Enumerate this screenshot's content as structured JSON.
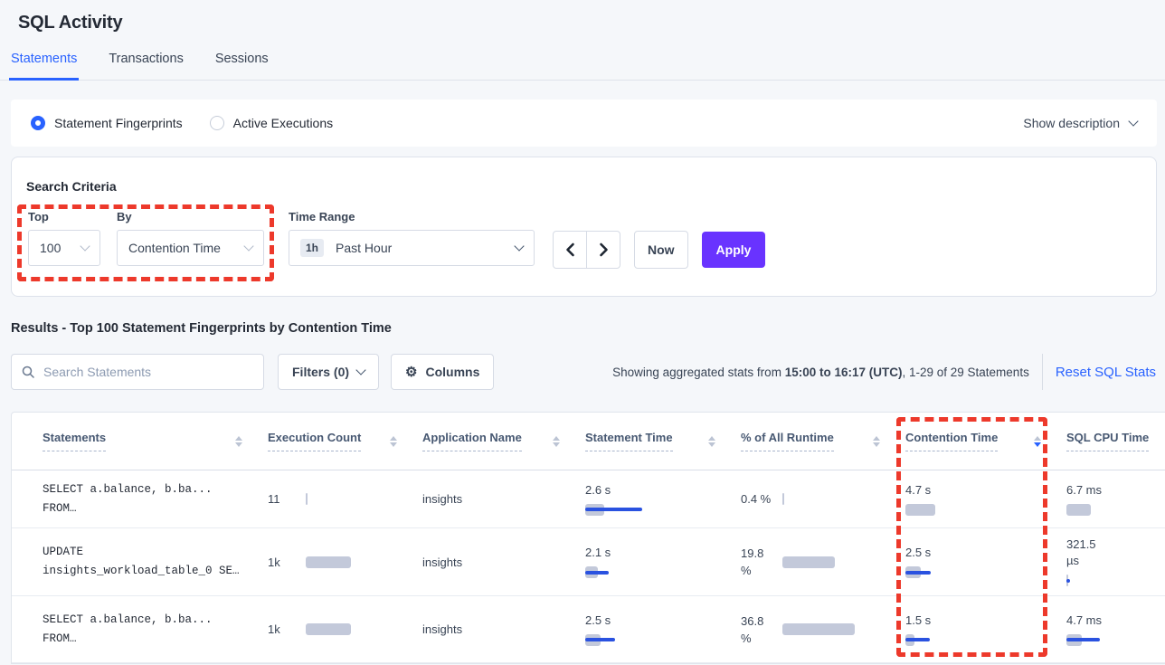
{
  "page": {
    "title": "SQL Activity",
    "background": "#f5f7fa",
    "accent_blue": "#2962ff",
    "accent_purple": "#6933ff",
    "annotation_red": "#ed392b",
    "bar_gray": "#c3c9da",
    "bar_blue": "#2a52e0"
  },
  "tabs": [
    {
      "label": "Statements",
      "active": true
    },
    {
      "label": "Transactions",
      "active": false
    },
    {
      "label": "Sessions",
      "active": false
    }
  ],
  "view_toggle": {
    "options": [
      {
        "label": "Statement Fingerprints",
        "selected": true
      },
      {
        "label": "Active Executions",
        "selected": false
      }
    ],
    "show_description_label": "Show description"
  },
  "search_criteria": {
    "heading": "Search Criteria",
    "top_label": "Top",
    "top_value": "100",
    "by_label": "By",
    "by_value": "Contention Time",
    "time_range_label": "Time Range",
    "time_range_badge": "1h",
    "time_range_value": "Past Hour",
    "now_label": "Now",
    "apply_label": "Apply"
  },
  "results": {
    "heading": "Results - Top 100 Statement Fingerprints by Contention Time",
    "search_placeholder": "Search Statements",
    "filters_label": "Filters (0)",
    "columns_label": "Columns",
    "stats_prefix": "Showing aggregated stats from ",
    "stats_range": "15:00 to 16:17 (UTC)",
    "stats_suffix": ", 1-29 of 29 Statements",
    "reset_label": "Reset SQL Stats"
  },
  "table": {
    "headers": [
      {
        "label": "Statements",
        "sort": "none"
      },
      {
        "label": "Execution Count",
        "sort": "none"
      },
      {
        "label": "Application Name",
        "sort": "none"
      },
      {
        "label": "Statement Time",
        "sort": "none"
      },
      {
        "label": "% of All Runtime",
        "sort": "none"
      },
      {
        "label": "Contention Time",
        "sort": "desc"
      },
      {
        "label": "SQL CPU Time",
        "sort": "none"
      }
    ],
    "rows": [
      {
        "statement_line1": "SELECT a.balance, b.ba...",
        "statement_line2": "FROM…",
        "execution": {
          "text": "11",
          "bar": 2
        },
        "application": "insights",
        "statement_time": {
          "text": "2.6 s",
          "bar": 21,
          "line": 63
        },
        "pct_runtime": {
          "text": "0.4 %",
          "bar": 2
        },
        "contention_time": {
          "text": "4.7 s",
          "bar": 33,
          "line": 0
        },
        "sql_cpu_time": {
          "text": "6.7 ms",
          "bar": 27,
          "line": 0
        }
      },
      {
        "statement_line1": "UPDATE",
        "statement_line2": "insights_workload_table_0 SE…",
        "execution": {
          "text": "1k",
          "bar": 50
        },
        "application": "insights",
        "statement_time": {
          "text": "2.1 s",
          "bar": 14,
          "line": 26
        },
        "pct_runtime": {
          "text": "19.8 %",
          "bar": 58
        },
        "contention_time": {
          "text": "2.5 s",
          "bar": 17,
          "line": 28
        },
        "sql_cpu_time": {
          "text": "321.5 µs",
          "bar": 2,
          "line": 4
        }
      },
      {
        "statement_line1": "SELECT a.balance, b.ba...",
        "statement_line2": "FROM…",
        "execution": {
          "text": "1k",
          "bar": 50
        },
        "application": "insights",
        "statement_time": {
          "text": "2.5 s",
          "bar": 17,
          "line": 33
        },
        "pct_runtime": {
          "text": "36.8 %",
          "bar": 80
        },
        "contention_time": {
          "text": "1.5 s",
          "bar": 10,
          "line": 27
        },
        "sql_cpu_time": {
          "text": "4.7 ms",
          "bar": 17,
          "line": 37
        }
      }
    ]
  }
}
